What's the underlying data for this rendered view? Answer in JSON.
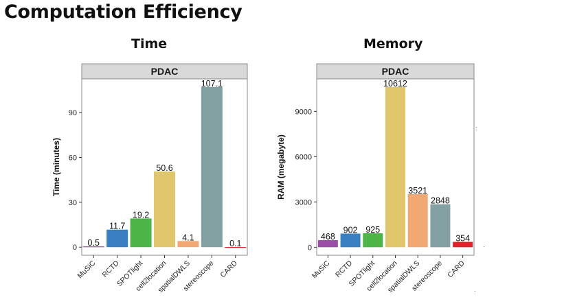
{
  "page": {
    "title": "Computation Efficiency",
    "stray_marks": [
      ":",
      "·",
      "."
    ]
  },
  "colors": {
    "MuSiC": "#9b4ea5",
    "RCTD": "#3a7fc2",
    "SPOTlight": "#4db447",
    "cell2location": "#e0c66a",
    "spatialDWLS": "#f2a872",
    "stereoscope": "#83a0a2",
    "CARD": "#e2212a",
    "strip": "#d9d9d9",
    "panel_border": "#8a8a8a"
  },
  "chart_data": [
    {
      "type": "bar",
      "heading": "Time",
      "strip": "PDAC",
      "title": "",
      "xlabel": "",
      "ylabel": "Time (minutes)",
      "categories": [
        "MuSiC",
        "RCTD",
        "SPOTlight",
        "cell2location",
        "spatialDWLS",
        "stereoscope",
        "CARD"
      ],
      "values": [
        0.5,
        11.7,
        19.2,
        50.6,
        4.1,
        107.1,
        0.1
      ],
      "value_labels": [
        "0.5",
        "11.7",
        "19.2",
        "50.6",
        "4.1",
        "107.1",
        "0.1"
      ],
      "yticks": [
        0,
        30,
        60,
        90
      ],
      "ylim": [
        -5.4,
        112.5
      ],
      "grid": false,
      "legend": "none"
    },
    {
      "type": "bar",
      "heading": "Memory",
      "strip": "PDAC",
      "title": "",
      "xlabel": "",
      "ylabel": "RAM (megabyte)",
      "categories": [
        "MuSiC",
        "RCTD",
        "SPOTlight",
        "cell2location",
        "spatialDWLS",
        "stereoscope",
        "CARD"
      ],
      "values": [
        468,
        902,
        925,
        10612,
        3521,
        2848,
        354
      ],
      "value_labels": [
        "468",
        "902",
        "925",
        "10612",
        "3521",
        "2848",
        "354"
      ],
      "yticks": [
        0,
        3000,
        6000,
        9000
      ],
      "ylim": [
        -530,
        11150
      ],
      "grid": false,
      "legend": "none"
    }
  ]
}
